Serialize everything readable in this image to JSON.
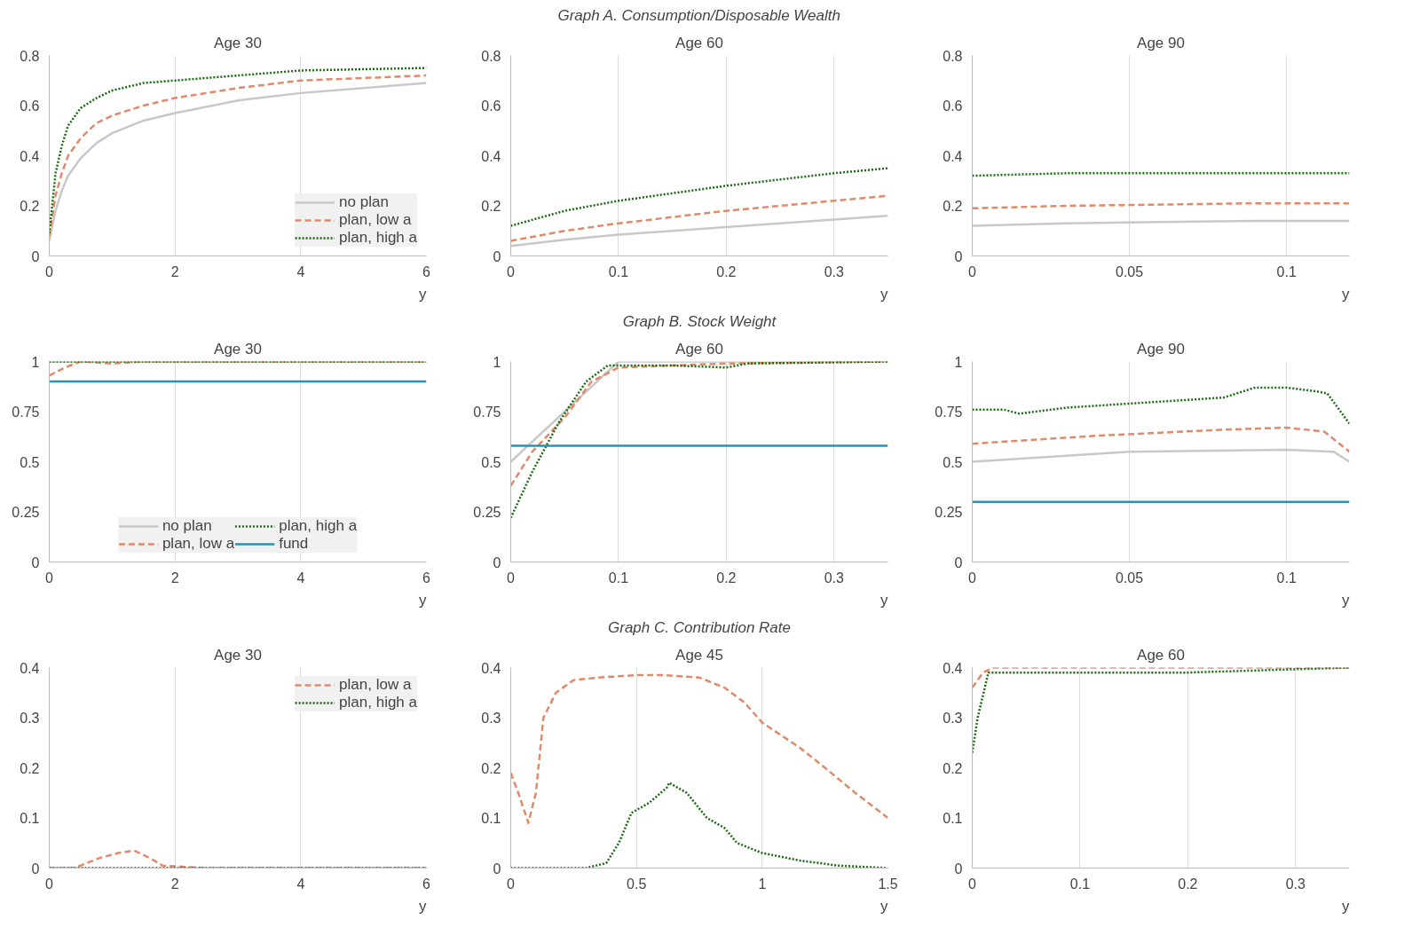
{
  "chart_data": [
    {
      "type": "line",
      "title": "Age 30",
      "xlabel": "y",
      "x": [
        0,
        0.1,
        0.2,
        0.3,
        0.5,
        0.75,
        1,
        1.5,
        2,
        3,
        4,
        5,
        6
      ],
      "xlim": [
        0,
        6
      ],
      "xticks": [
        0,
        2,
        4,
        6
      ],
      "ylim": [
        0,
        0.8
      ],
      "yticks": [
        0,
        0.2,
        0.4,
        0.6,
        0.8
      ],
      "grid": "x",
      "legend": "bottom right",
      "series": [
        {
          "name": "no plan",
          "color": "#c8c8c8",
          "line_style": "solid",
          "values": [
            0.06,
            0.18,
            0.26,
            0.32,
            0.39,
            0.45,
            0.49,
            0.54,
            0.57,
            0.62,
            0.65,
            0.67,
            0.69
          ]
        },
        {
          "name": "plan, low a",
          "color": "#e08a6a",
          "line_style": "dashed",
          "values": [
            0.08,
            0.24,
            0.33,
            0.4,
            0.47,
            0.53,
            0.56,
            0.6,
            0.63,
            0.67,
            0.7,
            0.71,
            0.72
          ]
        },
        {
          "name": "plan, high a",
          "color": "#1a6b10",
          "line_style": "dotted",
          "values": [
            0.09,
            0.33,
            0.44,
            0.52,
            0.59,
            0.63,
            0.66,
            0.69,
            0.7,
            0.72,
            0.74,
            0.745,
            0.75
          ]
        }
      ]
    },
    {
      "type": "line",
      "title": "Age 60",
      "annotations": [
        "Graph A. Consumption/Disposable Wealth"
      ],
      "xlabel": "y",
      "x": [
        0,
        0.05,
        0.1,
        0.15,
        0.2,
        0.25,
        0.3,
        0.35
      ],
      "xlim": [
        0,
        0.35
      ],
      "xticks": [
        0,
        0.1,
        0.2,
        0.3
      ],
      "ylim": [
        0,
        0.8
      ],
      "yticks": [
        0,
        0.2,
        0.4,
        0.6,
        0.8
      ],
      "grid": "x",
      "series": [
        {
          "color": "#c8c8c8",
          "line_style": "solid",
          "values": [
            0.04,
            0.065,
            0.085,
            0.1,
            0.115,
            0.13,
            0.145,
            0.16
          ]
        },
        {
          "color": "#e08a6a",
          "line_style": "dashed",
          "values": [
            0.06,
            0.1,
            0.13,
            0.155,
            0.18,
            0.2,
            0.22,
            0.24
          ]
        },
        {
          "color": "#1a6b10",
          "line_style": "dotted",
          "values": [
            0.12,
            0.18,
            0.22,
            0.25,
            0.28,
            0.305,
            0.33,
            0.35
          ]
        }
      ]
    },
    {
      "type": "line",
      "title": "Age 90",
      "xlabel": "y",
      "x": [
        0,
        0.03,
        0.06,
        0.09,
        0.12
      ],
      "xlim": [
        0,
        0.12
      ],
      "xticks": [
        0,
        0.05,
        0.1
      ],
      "ylim": [
        0,
        0.8
      ],
      "yticks": [
        0,
        0.2,
        0.4,
        0.6,
        0.8
      ],
      "grid": "x",
      "series": [
        {
          "color": "#c8c8c8",
          "line_style": "solid",
          "values": [
            0.12,
            0.13,
            0.135,
            0.14,
            0.14
          ]
        },
        {
          "color": "#e08a6a",
          "line_style": "dashed",
          "values": [
            0.19,
            0.2,
            0.205,
            0.21,
            0.21
          ]
        },
        {
          "color": "#1a6b10",
          "line_style": "dotted",
          "values": [
            0.32,
            0.33,
            0.33,
            0.33,
            0.33
          ]
        }
      ]
    },
    {
      "type": "line",
      "title": "Age 30",
      "xlabel": "y",
      "xlim": [
        0,
        6
      ],
      "xticks": [
        0,
        2,
        4,
        6
      ],
      "ylim": [
        0,
        1
      ],
      "yticks": [
        0,
        0.25,
        0.5,
        0.75,
        1
      ],
      "grid": "x",
      "legend": "bottom",
      "series": [
        {
          "name": "no plan",
          "color": "#c8c8c8",
          "line_style": "solid",
          "x": [
            0,
            6
          ],
          "values": [
            1,
            1
          ]
        },
        {
          "name": "plan, low a",
          "color": "#e08a6a",
          "line_style": "dashed",
          "x": [
            0,
            0.25,
            0.5,
            1,
            1.5,
            6
          ],
          "values": [
            0.93,
            0.97,
            1,
            0.99,
            1,
            1
          ]
        },
        {
          "name": "plan, high a",
          "color": "#1a6b10",
          "line_style": "dotted",
          "x": [
            0,
            6
          ],
          "values": [
            1,
            1
          ]
        },
        {
          "name": "fund",
          "color": "#2e8fb0",
          "line_style": "solid",
          "x": [
            0,
            6
          ],
          "values": [
            0.9,
            0.9
          ]
        }
      ]
    },
    {
      "type": "line",
      "title": "Age 60",
      "annotations": [
        "Graph B. Stock Weight"
      ],
      "xlabel": "y",
      "xlim": [
        0,
        0.35
      ],
      "xticks": [
        0,
        0.1,
        0.2,
        0.3
      ],
      "ylim": [
        0,
        1
      ],
      "yticks": [
        0,
        0.25,
        0.5,
        0.75,
        1
      ],
      "grid": "x",
      "series": [
        {
          "color": "#c8c8c8",
          "line_style": "solid",
          "x": [
            0,
            0.02,
            0.05,
            0.08,
            0.1,
            0.35
          ],
          "values": [
            0.5,
            0.6,
            0.75,
            0.9,
            1,
            1
          ]
        },
        {
          "color": "#e08a6a",
          "line_style": "dashed",
          "x": [
            0,
            0.02,
            0.05,
            0.075,
            0.1,
            0.15,
            0.2,
            0.35
          ],
          "values": [
            0.38,
            0.55,
            0.72,
            0.9,
            0.97,
            0.98,
            0.99,
            1
          ]
        },
        {
          "color": "#1a6b10",
          "line_style": "dotted",
          "x": [
            0,
            0.02,
            0.045,
            0.07,
            0.09,
            0.15,
            0.2,
            0.22,
            0.35
          ],
          "values": [
            0.22,
            0.45,
            0.7,
            0.9,
            0.98,
            0.98,
            0.97,
            0.99,
            1
          ]
        },
        {
          "color": "#2e8fb0",
          "line_style": "solid",
          "x": [
            0,
            0.35
          ],
          "values": [
            0.58,
            0.58
          ]
        }
      ]
    },
    {
      "type": "line",
      "title": "Age 90",
      "xlabel": "y",
      "xlim": [
        0,
        0.12
      ],
      "xticks": [
        0,
        0.05,
        0.1
      ],
      "ylim": [
        0,
        1
      ],
      "yticks": [
        0,
        0.25,
        0.5,
        0.75,
        1
      ],
      "grid": "x",
      "series": [
        {
          "color": "#c8c8c8",
          "line_style": "solid",
          "x": [
            0,
            0.05,
            0.1,
            0.115,
            0.12
          ],
          "values": [
            0.5,
            0.55,
            0.56,
            0.55,
            0.5
          ]
        },
        {
          "color": "#e08a6a",
          "line_style": "dashed",
          "x": [
            0,
            0.04,
            0.08,
            0.1,
            0.112,
            0.12
          ],
          "values": [
            0.59,
            0.63,
            0.66,
            0.67,
            0.65,
            0.55
          ]
        },
        {
          "color": "#1a6b10",
          "line_style": "dotted",
          "x": [
            0,
            0.01,
            0.015,
            0.03,
            0.05,
            0.08,
            0.09,
            0.1,
            0.11,
            0.113,
            0.12
          ],
          "values": [
            0.76,
            0.76,
            0.74,
            0.77,
            0.79,
            0.82,
            0.87,
            0.87,
            0.85,
            0.84,
            0.69
          ]
        },
        {
          "color": "#2e8fb0",
          "line_style": "solid",
          "x": [
            0,
            0.12
          ],
          "values": [
            0.3,
            0.3
          ]
        }
      ]
    },
    {
      "type": "line",
      "title": "Age 30",
      "xlabel": "y",
      "xlim": [
        0,
        6
      ],
      "xticks": [
        0,
        2,
        4,
        6
      ],
      "ylim": [
        0,
        0.4
      ],
      "yticks": [
        0,
        0.1,
        0.2,
        0.3,
        0.4
      ],
      "grid": "x",
      "legend": "top right",
      "series": [
        {
          "name": "plan, low a",
          "color": "#e08a6a",
          "line_style": "dashed",
          "x": [
            0,
            0.4,
            0.8,
            1.1,
            1.35,
            1.6,
            1.8,
            2.5,
            6
          ],
          "values": [
            0,
            0,
            0.02,
            0.03,
            0.035,
            0.02,
            0.005,
            0,
            0
          ]
        },
        {
          "name": "plan, high a",
          "color": "#1a6b10",
          "line_style": "dotted",
          "x": [
            0,
            6
          ],
          "values": [
            0,
            0
          ]
        }
      ]
    },
    {
      "type": "line",
      "title": "Age 45",
      "annotations": [
        "Graph C. Contribution Rate"
      ],
      "xlabel": "y",
      "xlim": [
        0,
        1.5
      ],
      "xticks": [
        0,
        0.5,
        1,
        1.5
      ],
      "ylim": [
        0,
        0.4
      ],
      "yticks": [
        0,
        0.1,
        0.2,
        0.3,
        0.4
      ],
      "grid": "x",
      "series": [
        {
          "color": "#e08a6a",
          "line_style": "dashed",
          "x": [
            0,
            0.03,
            0.07,
            0.1,
            0.13,
            0.18,
            0.25,
            0.35,
            0.5,
            0.6,
            0.75,
            0.85,
            0.93,
            1,
            1.15,
            1.25,
            1.37,
            1.5
          ],
          "values": [
            0.19,
            0.15,
            0.09,
            0.15,
            0.3,
            0.35,
            0.375,
            0.38,
            0.385,
            0.385,
            0.38,
            0.36,
            0.33,
            0.29,
            0.24,
            0.2,
            0.15,
            0.1
          ]
        },
        {
          "color": "#1a6b10",
          "line_style": "dotted",
          "x": [
            0,
            0.3,
            0.38,
            0.43,
            0.48,
            0.55,
            0.62,
            0.63,
            0.7,
            0.78,
            0.85,
            0.9,
            1,
            1.15,
            1.3,
            1.5
          ],
          "values": [
            0,
            0,
            0.01,
            0.05,
            0.11,
            0.13,
            0.16,
            0.17,
            0.15,
            0.1,
            0.08,
            0.05,
            0.03,
            0.015,
            0.005,
            0
          ]
        }
      ]
    },
    {
      "type": "line",
      "title": "Age 60",
      "xlabel": "y",
      "xlim": [
        0,
        0.35
      ],
      "xticks": [
        0,
        0.1,
        0.2,
        0.3
      ],
      "ylim": [
        0,
        0.4
      ],
      "yticks": [
        0,
        0.1,
        0.2,
        0.3,
        0.4
      ],
      "grid": "x",
      "series": [
        {
          "color": "#e08a6a",
          "line_style": "dashed",
          "x": [
            0,
            0.01,
            0.02,
            0.35
          ],
          "values": [
            0.36,
            0.39,
            0.4,
            0.4
          ]
        },
        {
          "color": "#1a6b10",
          "line_style": "dotted",
          "x": [
            0,
            0.005,
            0.015,
            0.2,
            0.35
          ],
          "values": [
            0.23,
            0.3,
            0.39,
            0.39,
            0.4
          ]
        }
      ]
    }
  ]
}
